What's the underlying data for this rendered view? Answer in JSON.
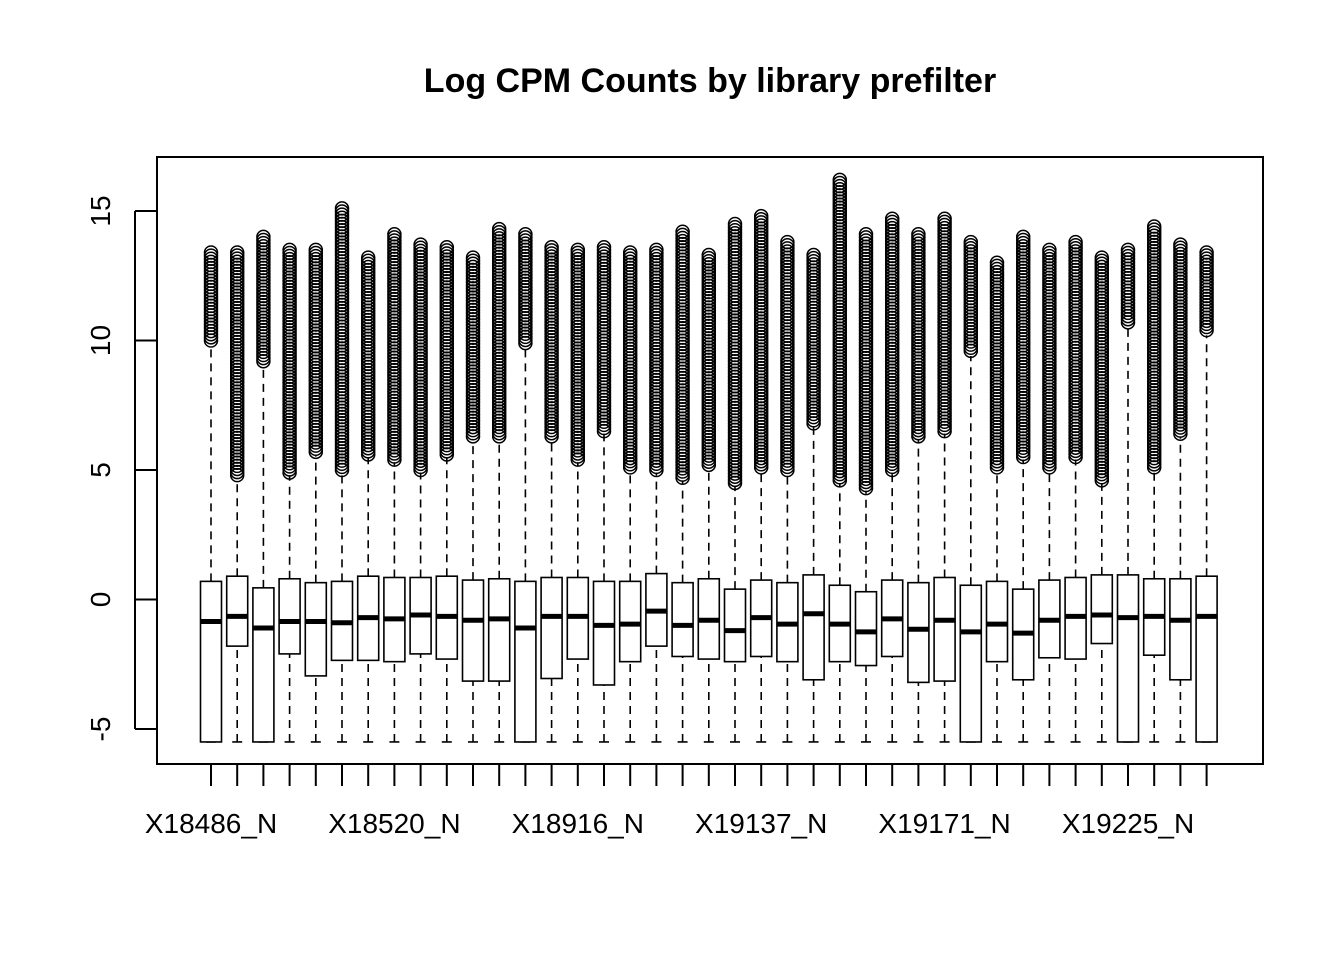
{
  "chart_data": {
    "type": "boxplot",
    "title": "Log CPM Counts by library prefilter",
    "xlabel": "",
    "ylabel": "",
    "ylim": [
      -6.2,
      17.1
    ],
    "yticks": [
      -5,
      0,
      5,
      10,
      15
    ],
    "ytick_labels": [
      "-5",
      "0",
      "5",
      "10",
      "15"
    ],
    "xtick_labels": [
      "X18486_N",
      "X18520_N",
      "X18916_N",
      "X19137_N",
      "X19171_N",
      "X19225_N"
    ],
    "xtick_label_positions": [
      1,
      8,
      15,
      22,
      29,
      36
    ],
    "colors": {
      "box_fill": "#ffffff",
      "stroke": "#000000",
      "background": "#ffffff"
    },
    "whisker_style": "dashed",
    "outlier_marker": "open-circle",
    "grid": false,
    "n_boxes": 39,
    "boxes": [
      {
        "min": -5.5,
        "q1": -5.5,
        "median": -0.85,
        "q3": 0.7,
        "whisker_hi": 9.9,
        "outlier_lo": 10.0,
        "outlier_hi": 13.4
      },
      {
        "min": -5.5,
        "q1": -1.8,
        "median": -0.65,
        "q3": 0.9,
        "whisker_hi": 4.7,
        "outlier_lo": 4.8,
        "outlier_hi": 13.4
      },
      {
        "min": -5.5,
        "q1": -5.5,
        "median": -1.1,
        "q3": 0.45,
        "whisker_hi": 9.0,
        "outlier_lo": 9.2,
        "outlier_hi": 14.0
      },
      {
        "min": -5.5,
        "q1": -2.1,
        "median": -0.85,
        "q3": 0.8,
        "whisker_hi": 4.8,
        "outlier_lo": 4.9,
        "outlier_hi": 13.5
      },
      {
        "min": -5.5,
        "q1": -2.95,
        "median": -0.85,
        "q3": 0.65,
        "whisker_hi": 5.6,
        "outlier_lo": 5.7,
        "outlier_hi": 13.5
      },
      {
        "min": -5.5,
        "q1": -2.35,
        "median": -0.9,
        "q3": 0.7,
        "whisker_hi": 4.9,
        "outlier_lo": 5.0,
        "outlier_hi": 15.1
      },
      {
        "min": -5.5,
        "q1": -2.35,
        "median": -0.7,
        "q3": 0.9,
        "whisker_hi": 5.5,
        "outlier_lo": 5.6,
        "outlier_hi": 13.2
      },
      {
        "min": -5.5,
        "q1": -2.4,
        "median": -0.75,
        "q3": 0.85,
        "whisker_hi": 5.3,
        "outlier_lo": 5.4,
        "outlier_hi": 14.1
      },
      {
        "min": -5.5,
        "q1": -2.1,
        "median": -0.6,
        "q3": 0.85,
        "whisker_hi": 4.9,
        "outlier_lo": 5.0,
        "outlier_hi": 13.7
      },
      {
        "min": -5.5,
        "q1": -2.3,
        "median": -0.65,
        "q3": 0.9,
        "whisker_hi": 5.5,
        "outlier_lo": 5.6,
        "outlier_hi": 13.6
      },
      {
        "min": -5.5,
        "q1": -3.15,
        "median": -0.8,
        "q3": 0.75,
        "whisker_hi": 6.2,
        "outlier_lo": 6.3,
        "outlier_hi": 13.2
      },
      {
        "min": -5.5,
        "q1": -3.15,
        "median": -0.75,
        "q3": 0.8,
        "whisker_hi": 6.2,
        "outlier_lo": 6.3,
        "outlier_hi": 14.3
      },
      {
        "min": -5.5,
        "q1": -5.5,
        "median": -1.1,
        "q3": 0.7,
        "whisker_hi": 9.7,
        "outlier_lo": 9.9,
        "outlier_hi": 14.1
      },
      {
        "min": -5.5,
        "q1": -3.05,
        "median": -0.65,
        "q3": 0.85,
        "whisker_hi": 6.2,
        "outlier_lo": 6.3,
        "outlier_hi": 13.6
      },
      {
        "min": -5.5,
        "q1": -2.3,
        "median": -0.65,
        "q3": 0.85,
        "whisker_hi": 5.3,
        "outlier_lo": 5.4,
        "outlier_hi": 13.5
      },
      {
        "min": -5.5,
        "q1": -3.3,
        "median": -1.0,
        "q3": 0.7,
        "whisker_hi": 6.4,
        "outlier_lo": 6.5,
        "outlier_hi": 13.6
      },
      {
        "min": -5.5,
        "q1": -2.4,
        "median": -0.95,
        "q3": 0.7,
        "whisker_hi": 5.0,
        "outlier_lo": 5.1,
        "outlier_hi": 13.4
      },
      {
        "min": -5.5,
        "q1": -1.8,
        "median": -0.45,
        "q3": 1.0,
        "whisker_hi": 4.9,
        "outlier_lo": 5.0,
        "outlier_hi": 13.5
      },
      {
        "min": -5.5,
        "q1": -2.2,
        "median": -1.0,
        "q3": 0.65,
        "whisker_hi": 4.6,
        "outlier_lo": 4.7,
        "outlier_hi": 14.2
      },
      {
        "min": -5.5,
        "q1": -2.3,
        "median": -0.8,
        "q3": 0.8,
        "whisker_hi": 5.1,
        "outlier_lo": 5.2,
        "outlier_hi": 13.3
      },
      {
        "min": -5.5,
        "q1": -2.4,
        "median": -1.2,
        "q3": 0.4,
        "whisker_hi": 4.4,
        "outlier_lo": 4.5,
        "outlier_hi": 14.5
      },
      {
        "min": -5.5,
        "q1": -2.2,
        "median": -0.7,
        "q3": 0.75,
        "whisker_hi": 5.0,
        "outlier_lo": 5.1,
        "outlier_hi": 14.8
      },
      {
        "min": -5.5,
        "q1": -2.4,
        "median": -0.95,
        "q3": 0.65,
        "whisker_hi": 4.9,
        "outlier_lo": 5.0,
        "outlier_hi": 13.8
      },
      {
        "min": -5.5,
        "q1": -3.1,
        "median": -0.55,
        "q3": 0.95,
        "whisker_hi": 6.7,
        "outlier_lo": 6.8,
        "outlier_hi": 13.3
      },
      {
        "min": -5.5,
        "q1": -2.4,
        "median": -0.95,
        "q3": 0.55,
        "whisker_hi": 4.5,
        "outlier_lo": 4.6,
        "outlier_hi": 16.2
      },
      {
        "min": -5.5,
        "q1": -2.55,
        "median": -1.25,
        "q3": 0.3,
        "whisker_hi": 4.2,
        "outlier_lo": 4.3,
        "outlier_hi": 14.1
      },
      {
        "min": -5.5,
        "q1": -2.2,
        "median": -0.75,
        "q3": 0.75,
        "whisker_hi": 4.9,
        "outlier_lo": 5.0,
        "outlier_hi": 14.7
      },
      {
        "min": -5.5,
        "q1": -3.2,
        "median": -1.15,
        "q3": 0.65,
        "whisker_hi": 6.2,
        "outlier_lo": 6.3,
        "outlier_hi": 14.1
      },
      {
        "min": -5.5,
        "q1": -3.15,
        "median": -0.8,
        "q3": 0.85,
        "whisker_hi": 6.4,
        "outlier_lo": 6.5,
        "outlier_hi": 14.7
      },
      {
        "min": -5.5,
        "q1": -5.5,
        "median": -1.25,
        "q3": 0.55,
        "whisker_hi": 9.4,
        "outlier_lo": 9.6,
        "outlier_hi": 13.8
      },
      {
        "min": -5.5,
        "q1": -2.4,
        "median": -0.95,
        "q3": 0.7,
        "whisker_hi": 5.0,
        "outlier_lo": 5.1,
        "outlier_hi": 13.0
      },
      {
        "min": -5.5,
        "q1": -3.1,
        "median": -1.3,
        "q3": 0.4,
        "whisker_hi": 5.4,
        "outlier_lo": 5.5,
        "outlier_hi": 14.0
      },
      {
        "min": -5.5,
        "q1": -2.25,
        "median": -0.8,
        "q3": 0.75,
        "whisker_hi": 5.0,
        "outlier_lo": 5.1,
        "outlier_hi": 13.5
      },
      {
        "min": -5.5,
        "q1": -2.3,
        "median": -0.65,
        "q3": 0.85,
        "whisker_hi": 5.4,
        "outlier_lo": 5.5,
        "outlier_hi": 13.8
      },
      {
        "min": -5.5,
        "q1": -1.7,
        "median": -0.6,
        "q3": 0.95,
        "whisker_hi": 4.5,
        "outlier_lo": 4.6,
        "outlier_hi": 13.2
      },
      {
        "min": -5.5,
        "q1": -5.5,
        "median": -0.7,
        "q3": 0.95,
        "whisker_hi": 10.5,
        "outlier_lo": 10.7,
        "outlier_hi": 13.5
      },
      {
        "min": -5.5,
        "q1": -2.15,
        "median": -0.65,
        "q3": 0.8,
        "whisker_hi": 5.0,
        "outlier_lo": 5.1,
        "outlier_hi": 14.4
      },
      {
        "min": -5.5,
        "q1": -3.1,
        "median": -0.8,
        "q3": 0.8,
        "whisker_hi": 6.3,
        "outlier_lo": 6.4,
        "outlier_hi": 13.7
      },
      {
        "min": -5.5,
        "q1": -5.5,
        "median": -0.65,
        "q3": 0.9,
        "whisker_hi": 10.2,
        "outlier_lo": 10.4,
        "outlier_hi": 13.4
      }
    ]
  }
}
